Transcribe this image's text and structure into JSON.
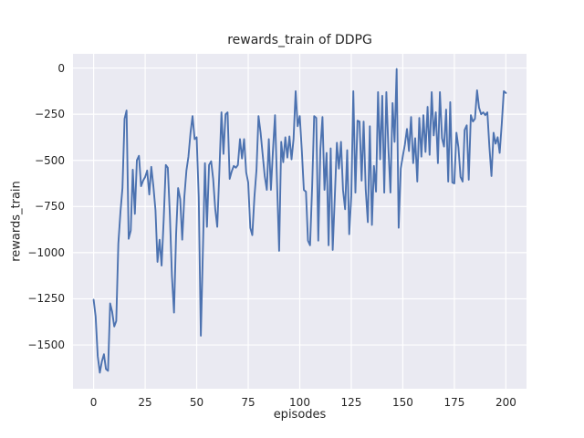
{
  "figure": {
    "background": "#ffffff"
  },
  "chart_data": {
    "type": "line",
    "title": "rewards_train of DDPG",
    "xlabel": "episodes",
    "ylabel": "rewards_train",
    "legend": null,
    "grid": true,
    "axes_bg": "#eaeaf2",
    "grid_color": "#ffffff",
    "line_color": "#4c72b0",
    "text_color": "#262626",
    "xlim": [
      -10,
      210
    ],
    "ylim": [
      -1737,
      77
    ],
    "xticks": [
      0,
      25,
      50,
      75,
      100,
      125,
      150,
      175,
      200
    ],
    "yticks": [
      0,
      -250,
      -500,
      -750,
      -1000,
      -1250,
      -1500
    ],
    "x_start": 0,
    "x_step": 1,
    "values": [
      -1255,
      -1345,
      -1560,
      -1650,
      -1590,
      -1550,
      -1630,
      -1640,
      -1275,
      -1320,
      -1400,
      -1370,
      -950,
      -780,
      -650,
      -275,
      -230,
      -925,
      -880,
      -550,
      -790,
      -500,
      -475,
      -640,
      -610,
      -590,
      -555,
      -685,
      -535,
      -640,
      -770,
      -1050,
      -930,
      -1070,
      -820,
      -525,
      -540,
      -800,
      -1125,
      -1325,
      -900,
      -650,
      -710,
      -930,
      -700,
      -555,
      -480,
      -350,
      -260,
      -385,
      -375,
      -700,
      -1450,
      -1000,
      -515,
      -860,
      -525,
      -505,
      -600,
      -765,
      -860,
      -560,
      -240,
      -465,
      -250,
      -240,
      -600,
      -560,
      -530,
      -540,
      -525,
      -385,
      -490,
      -385,
      -565,
      -620,
      -865,
      -905,
      -700,
      -550,
      -260,
      -350,
      -465,
      -585,
      -660,
      -385,
      -660,
      -450,
      -255,
      -620,
      -990,
      -400,
      -510,
      -375,
      -485,
      -370,
      -495,
      -385,
      -125,
      -315,
      -260,
      -450,
      -660,
      -670,
      -935,
      -960,
      -640,
      -260,
      -270,
      -935,
      -440,
      -265,
      -660,
      -460,
      -960,
      -435,
      -985,
      -700,
      -405,
      -545,
      -400,
      -660,
      -765,
      -445,
      -900,
      -690,
      -125,
      -675,
      -285,
      -290,
      -610,
      -290,
      -660,
      -835,
      -315,
      -850,
      -530,
      -670,
      -130,
      -495,
      -150,
      -675,
      -130,
      -430,
      -675,
      -190,
      -400,
      -5,
      -865,
      -545,
      -475,
      -415,
      -330,
      -450,
      -265,
      -515,
      -380,
      -615,
      -270,
      -480,
      -255,
      -455,
      -210,
      -470,
      -130,
      -365,
      -240,
      -515,
      -130,
      -380,
      -425,
      -225,
      -615,
      -185,
      -620,
      -625,
      -350,
      -430,
      -590,
      -615,
      -335,
      -310,
      -605,
      -255,
      -290,
      -275,
      -120,
      -215,
      -250,
      -240,
      -255,
      -240,
      -425,
      -585,
      -350,
      -410,
      -375,
      -460,
      -300,
      -125,
      -135
    ]
  }
}
